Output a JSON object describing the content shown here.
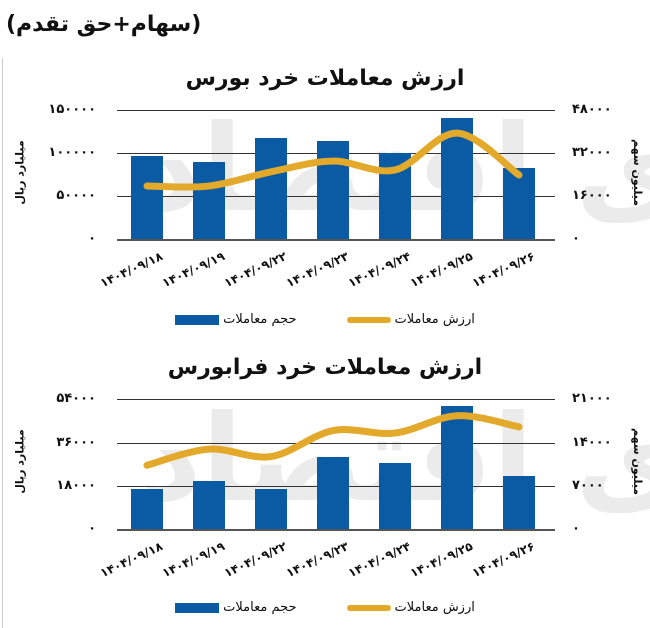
{
  "page": {
    "title": "(سهام+حق تقدم)",
    "watermark": "دنیای اقتصاد"
  },
  "colors": {
    "bar": "#0a5ba3",
    "line": "#e3a92a",
    "grid": "#333333"
  },
  "chart_data": [
    {
      "type": "bar+line",
      "title": "ارزش معاملات خرد بورس",
      "categories": [
        "1404/09/18",
        "1404/09/19",
        "1404/09/22",
        "1404/09/23",
        "1404/09/24",
        "1404/09/25",
        "1404/09/26"
      ],
      "category_labels": [
        "۱۴۰۴/۰۹/۱۸",
        "۱۴۰۴/۰۹/۱۹",
        "۱۴۰۴/۰۹/۲۲",
        "۱۴۰۴/۰۹/۲۳",
        "۱۴۰۴/۰۹/۲۴",
        "۱۴۰۴/۰۹/۲۵",
        "۱۴۰۴/۰۹/۲۶"
      ],
      "series": [
        {
          "name": "حجم معاملات",
          "type": "bar",
          "axis": "right",
          "values": [
            97000,
            89000,
            117000,
            114000,
            100000,
            141000,
            82000
          ]
        },
        {
          "name": "ارزش معاملات",
          "type": "line",
          "axis": "left",
          "values": [
            19700,
            19700,
            25000,
            29000,
            25700,
            39400,
            23800
          ]
        }
      ],
      "left_axis": {
        "label": "میلیارد ریال",
        "ticks": [
          "۱۵۰۰۰۰",
          "۱۰۰۰۰۰",
          "۵۰۰۰۰",
          "۰"
        ],
        "ylim": [
          0,
          150000
        ]
      },
      "right_axis": {
        "label": "میلیون سهم",
        "ticks": [
          "۴۸۰۰۰",
          "۳۲۰۰۰",
          "۱۶۰۰۰",
          "۰"
        ],
        "ylim": [
          0,
          48000
        ]
      },
      "legend": [
        "ارزش معاملات",
        "حجم معاملات"
      ],
      "legend_position": "bottom",
      "grid": true
    },
    {
      "type": "bar+line",
      "title": "ارزش معاملات خرد فرابورس",
      "categories": [
        "1404/09/18",
        "1404/09/19",
        "1404/09/22",
        "1404/09/23",
        "1404/09/24",
        "1404/09/25",
        "1404/09/26"
      ],
      "category_labels": [
        "۱۴۰۴/۰۹/۱۸",
        "۱۴۰۴/۰۹/۱۹",
        "۱۴۰۴/۰۹/۲۲",
        "۱۴۰۴/۰۹/۲۳",
        "۱۴۰۴/۰۹/۲۴",
        "۱۴۰۴/۰۹/۲۵",
        "۱۴۰۴/۰۹/۲۶"
      ],
      "series": [
        {
          "name": "حجم معاملات",
          "type": "bar",
          "axis": "left",
          "values": [
            16700,
            20100,
            16700,
            30100,
            27600,
            51000,
            22200
          ]
        },
        {
          "name": "ارزش معاملات",
          "type": "line",
          "axis": "right",
          "values": [
            10300,
            12900,
            11700,
            15900,
            15500,
            18300,
            16500
          ]
        }
      ],
      "left_axis": {
        "label": "میلیارد ریال",
        "ticks": [
          "۵۴۰۰۰",
          "۳۶۰۰۰",
          "۱۸۰۰۰",
          "۰"
        ],
        "ylim": [
          0,
          54000
        ]
      },
      "right_axis": {
        "label": "میلیون سهم",
        "ticks": [
          "۲۱۰۰۰",
          "۱۴۰۰۰",
          "۷۰۰۰",
          "۰"
        ],
        "ylim": [
          0,
          21000
        ]
      },
      "legend": [
        "ارزش معاملات",
        "حجم معاملات"
      ],
      "legend_position": "bottom",
      "grid": true
    }
  ]
}
